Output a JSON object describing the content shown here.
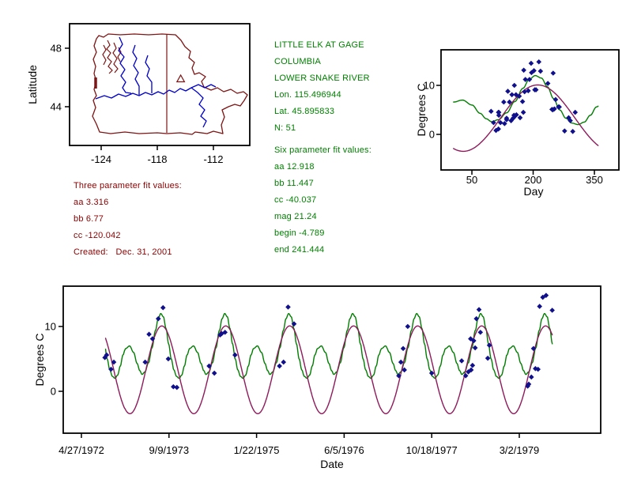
{
  "colors": {
    "green_text": "#008000",
    "red_text": "#8B0000",
    "map_boundary": "#7E1414",
    "river_blue": "#0000CD",
    "curve_green": "#007D00",
    "curve_maroon": "#8E1A5C",
    "point_navy": "#10108C",
    "axis_black": "#000000"
  },
  "text_blocks": {
    "station": {
      "lines": [
        "LITTLE ELK AT GAGE",
        "COLUMBIA",
        "LOWER SNAKE RIVER",
        "Lon. 115.496944",
        "Lat. 45.895833",
        "N: 51"
      ],
      "six_title": "Six parameter fit values:",
      "six_lines": [
        "aa 12.918",
        "bb 11.447",
        "cc -40.037",
        "mag 21.24",
        "begin -4.789",
        "end 241.444"
      ]
    },
    "three": {
      "title": "Three parameter fit values:",
      "lines": [
        "aa 3.316",
        "bb 6.77",
        "cc -120.042"
      ],
      "created": "Created:   Dec. 31, 2001"
    }
  },
  "chart_data": {
    "observations": {
      "description": "51 water temperature observations (date, degrees C)",
      "points": [
        [
          "1972-09-08",
          5.2
        ],
        [
          "1972-09-18",
          5.6
        ],
        [
          "1972-10-13",
          3.4
        ],
        [
          "1972-10-29",
          4.5
        ],
        [
          "1973-04-26",
          4.5
        ],
        [
          "1973-05-18",
          8.8
        ],
        [
          "1973-06-07",
          8.1
        ],
        [
          "1973-07-10",
          11.2
        ],
        [
          "1973-08-06",
          12.9
        ],
        [
          "1973-09-05",
          5.0
        ],
        [
          "1973-10-04",
          0.7
        ],
        [
          "1973-10-24",
          0.6
        ],
        [
          "1974-04-26",
          3.9
        ],
        [
          "1974-05-26",
          2.8
        ],
        [
          "1974-06-28",
          8.7
        ],
        [
          "1974-07-07",
          8.9
        ],
        [
          "1974-07-26",
          9.1
        ],
        [
          "1974-09-21",
          5.6
        ],
        [
          "1975-06-02",
          3.9
        ],
        [
          "1975-06-25",
          4.5
        ],
        [
          "1975-07-21",
          13.0
        ],
        [
          "1975-08-24",
          10.4
        ],
        [
          "1977-04-13",
          2.4
        ],
        [
          "1977-04-25",
          4.5
        ],
        [
          "1977-05-08",
          6.6
        ],
        [
          "1977-05-15",
          3.3
        ],
        [
          "1977-06-03",
          10.0
        ],
        [
          "1977-10-18",
          2.8
        ],
        [
          "1978-04-07",
          4.7
        ],
        [
          "1978-04-30",
          2.4
        ],
        [
          "1978-05-15",
          3.0
        ],
        [
          "1978-05-28",
          8.1
        ],
        [
          "1978-05-31",
          3.3
        ],
        [
          "1978-06-08",
          4.0
        ],
        [
          "1978-06-15",
          7.8
        ],
        [
          "1978-06-23",
          6.7
        ],
        [
          "1978-06-30",
          11.2
        ],
        [
          "1978-07-15",
          12.6
        ],
        [
          "1978-07-23",
          9.1
        ],
        [
          "1978-09-03",
          5.1
        ],
        [
          "1978-09-12",
          7.1
        ],
        [
          "1979-04-19",
          0.8
        ],
        [
          "1979-04-25",
          1.1
        ],
        [
          "1979-05-10",
          2.2
        ],
        [
          "1979-05-22",
          6.6
        ],
        [
          "1979-06-02",
          3.5
        ],
        [
          "1979-06-17",
          3.4
        ],
        [
          "1979-06-26",
          13.1
        ],
        [
          "1979-07-14",
          14.5
        ],
        [
          "1979-08-02",
          14.8
        ],
        [
          "1979-09-06",
          12.5
        ]
      ]
    },
    "fits": {
      "three_param": {
        "aa": 3.316,
        "bb": 6.77,
        "cc": -120.042,
        "model": "T(day) = aa + bb*sin(2*PI*(day+cc)/365)"
      },
      "six_param": {
        "aa": 12.918,
        "bb": 11.447,
        "cc": -40.037,
        "mag": 21.24,
        "begin": -4.789,
        "end": 241.444
      },
      "six_param_curve": [
        [
          5,
          6.6
        ],
        [
          27,
          7.0
        ],
        [
          50,
          6.0
        ],
        [
          70,
          4.3
        ],
        [
          85,
          3.2
        ],
        [
          98,
          2.6
        ],
        [
          115,
          3.0
        ],
        [
          135,
          4.4
        ],
        [
          155,
          6.7
        ],
        [
          175,
          9.4
        ],
        [
          190,
          11.2
        ],
        [
          205,
          12.0
        ],
        [
          220,
          11.5
        ],
        [
          235,
          9.7
        ],
        [
          250,
          7.3
        ],
        [
          265,
          5.0
        ],
        [
          280,
          3.3
        ],
        [
          295,
          2.3
        ],
        [
          310,
          2.0
        ],
        [
          325,
          2.5
        ],
        [
          340,
          3.9
        ],
        [
          355,
          5.6
        ]
      ]
    },
    "map": {
      "type": "map",
      "ylabel": "Latitude",
      "xticks": [
        -124,
        -118,
        -112
      ],
      "yticks": [
        48,
        44
      ],
      "xlim": [
        -127.4,
        -108.0
      ],
      "ylim": [
        41.4,
        49.7
      ],
      "station": {
        "lon": -115.496944,
        "lat": 45.895833
      }
    },
    "day_plot": {
      "type": "scatter",
      "xlabel": "Day",
      "ylabel": "Degrees C",
      "xticks": [
        50,
        200,
        350
      ],
      "yticks": [
        0,
        10
      ],
      "xlim": [
        -26,
        410
      ],
      "ylim": [
        -7.3,
        17.3
      ],
      "curve_day_range": [
        5,
        360
      ]
    },
    "date_plot": {
      "type": "scatter",
      "xlabel": "Date",
      "ylabel": "Degrees C",
      "xticks": [
        {
          "label": "4/27/1972",
          "date": "1972-04-27"
        },
        {
          "label": "9/9/1973",
          "date": "1973-09-09"
        },
        {
          "label": "1/22/1975",
          "date": "1975-01-22"
        },
        {
          "label": "6/5/1976",
          "date": "1976-06-05"
        },
        {
          "label": "10/18/1977",
          "date": "1977-10-18"
        },
        {
          "label": "3/2/1979",
          "date": "1979-03-02"
        }
      ],
      "yticks": [
        0,
        10
      ],
      "xlim": [
        "1972-01-14",
        "1980-06-09"
      ],
      "ylim": [
        -6.5,
        16.2
      ],
      "curve_start": "1972-09-12",
      "curve_end": "1979-09-08"
    }
  }
}
